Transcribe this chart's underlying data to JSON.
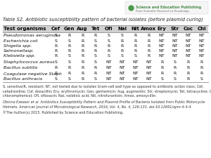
{
  "title": "Table S2. Antibiotic susceptibility pattern of bacterial isolates (before plasmid curing)",
  "columns": [
    "Test organisms",
    "Cef",
    "Gen",
    "Aug",
    "Tet",
    "Ofl",
    "Nal",
    "Nit",
    "Amox",
    "Ery",
    "Str",
    "Coc",
    "Chl"
  ],
  "rows": [
    [
      "Pseudomonas aeruginosa",
      "S",
      "R",
      "R",
      "R",
      "S",
      "S",
      "R",
      "R",
      "NT",
      "NT",
      "NT",
      "NT"
    ],
    [
      "Escherichia coli",
      "S",
      "S",
      "R",
      "S",
      "S",
      "R",
      "R",
      "R",
      "NT",
      "NT",
      "NT",
      "NT"
    ],
    [
      "Shigella spp.",
      "R",
      "R",
      "R",
      "R",
      "R",
      "R",
      "R",
      "R",
      "NT",
      "NT",
      "NT",
      "NT"
    ],
    [
      "Salmonellasp.",
      "R",
      "R",
      "R",
      "R",
      "R",
      "R",
      "R",
      "R",
      "NT",
      "NT",
      "NT",
      "NT"
    ],
    [
      "Klebsiella spp.",
      "R",
      "S",
      "R",
      "S",
      "S",
      "S",
      "S",
      "R",
      "NT",
      "NT",
      "NT",
      "NT"
    ],
    [
      "Staphylococcus aureus",
      "S",
      "S",
      "R",
      "S",
      "NT",
      "NT",
      "NT",
      "NT",
      "R",
      "S",
      "R",
      "R"
    ],
    [
      "Bacillus subtilis",
      "R",
      "R",
      "R",
      "R",
      "NT",
      "NT",
      "NT",
      "NT",
      "R",
      "R",
      "R",
      "R"
    ],
    [
      "Coagulase negative Staph",
      "R",
      "R",
      "R",
      "R",
      "NT",
      "NT",
      "NT",
      "NT",
      "R",
      "R",
      "R",
      "R"
    ],
    [
      "Bacillus anthracis",
      "S",
      "S",
      "R",
      "S",
      "NT",
      "NT",
      "NT",
      "NT",
      "S",
      "S",
      "R",
      "S"
    ]
  ],
  "footnote": "S, sensitive/R, resistant; NT, not tested due to isolates Gram-cell wall type as opposed to antibiotic action class; Cef,\ncefadroxiline; Cof, doxacillin; Ery, erythromycin; Gen, gentamicin; Aug, augmentin; Str, streptomycin; Tet, tetracycline; Chl,\nchloramphenicol; Ofl, ofloxacin; Nal, nalidixic acid; Nit, nitrofurantoin; Amox, amoxycillin.",
  "citation": "Obinna Ezeasor et al. Antibiotics Susceptibility Pattern and Plasmid Profile of Bacteria Isolated from Public Motorcycle\nHelmets. American Journal of Microbiological Research, 2016, Vol. 4, No. 4, 126-131. doi:10.12691/ajmr-4-4-4",
  "copyright": "©The Author(s) 2015. Published by Science and Education Publishing.",
  "header_bg": "#d0d0d0",
  "line_color": "#999999",
  "bg_color": "#ffffff",
  "title_fontsize": 4.8,
  "header_fontsize": 5.0,
  "cell_fontsize": 4.5,
  "footnote_fontsize": 3.5,
  "citation_fontsize": 3.5,
  "logo_main": "Science and Education Publishing",
  "logo_sub": "From Scientific Research to Knowledge",
  "logo_color": "#4a8a4a"
}
